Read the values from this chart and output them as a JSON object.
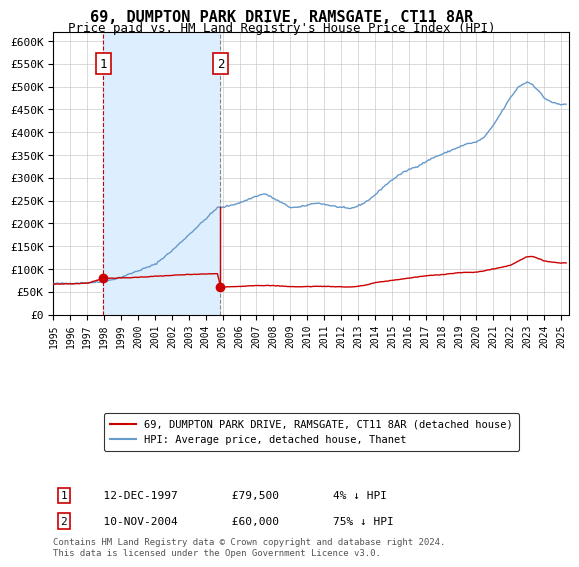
{
  "title": "69, DUMPTON PARK DRIVE, RAMSGATE, CT11 8AR",
  "subtitle": "Price paid vs. HM Land Registry's House Price Index (HPI)",
  "title_fontsize": 11,
  "subtitle_fontsize": 9,
  "purchases": [
    {
      "date_num": 1997.95,
      "price": 79500,
      "label": "1",
      "date_str": "12-DEC-1997",
      "hpi_diff": "4% ↓ HPI"
    },
    {
      "date_num": 2004.87,
      "price": 60000,
      "label": "2",
      "date_str": "10-NOV-2004",
      "hpi_diff": "75% ↓ HPI"
    }
  ],
  "legend_line1": "69, DUMPTON PARK DRIVE, RAMSGATE, CT11 8AR (detached house)",
  "legend_line2": "HPI: Average price, detached house, Thanet",
  "footnote": "Contains HM Land Registry data © Crown copyright and database right 2024.\nThis data is licensed under the Open Government Licence v3.0.",
  "price_line_color": "#cc0000",
  "hpi_line_color": "#6699cc",
  "shading_color": "#ddeeff",
  "dashed_vline_color": "#cc0000",
  "dashed_vline2_color": "#888888",
  "ylim_min": 0,
  "ylim_max": 620000,
  "xlim_min": 1995.0,
  "xlim_max": 2025.5,
  "background_color": "#ffffff",
  "grid_color": "#cccccc",
  "hpi_anchors": [
    [
      1995.0,
      68000
    ],
    [
      1996.0,
      68500
    ],
    [
      1997.0,
      70000
    ],
    [
      1998.0,
      72000
    ],
    [
      1999.0,
      82000
    ],
    [
      2000.0,
      96000
    ],
    [
      2001.0,
      110000
    ],
    [
      2002.0,
      140000
    ],
    [
      2003.0,
      175000
    ],
    [
      2004.0,
      210000
    ],
    [
      2004.7,
      235000
    ],
    [
      2005.0,
      235000
    ],
    [
      2005.5,
      240000
    ],
    [
      2006.0,
      245000
    ],
    [
      2007.0,
      260000
    ],
    [
      2007.5,
      265000
    ],
    [
      2008.0,
      255000
    ],
    [
      2008.5,
      245000
    ],
    [
      2009.0,
      235000
    ],
    [
      2009.5,
      235000
    ],
    [
      2010.0,
      240000
    ],
    [
      2010.5,
      245000
    ],
    [
      2011.0,
      242000
    ],
    [
      2011.5,
      238000
    ],
    [
      2012.0,
      235000
    ],
    [
      2012.5,
      232000
    ],
    [
      2013.0,
      238000
    ],
    [
      2013.5,
      248000
    ],
    [
      2014.0,
      262000
    ],
    [
      2014.5,
      280000
    ],
    [
      2015.0,
      295000
    ],
    [
      2015.5,
      308000
    ],
    [
      2016.0,
      318000
    ],
    [
      2016.5,
      325000
    ],
    [
      2017.0,
      335000
    ],
    [
      2017.5,
      345000
    ],
    [
      2018.0,
      352000
    ],
    [
      2018.5,
      360000
    ],
    [
      2019.0,
      368000
    ],
    [
      2019.5,
      375000
    ],
    [
      2020.0,
      378000
    ],
    [
      2020.5,
      390000
    ],
    [
      2021.0,
      415000
    ],
    [
      2021.5,
      445000
    ],
    [
      2022.0,
      475000
    ],
    [
      2022.5,
      500000
    ],
    [
      2023.0,
      510000
    ],
    [
      2023.3,
      505000
    ],
    [
      2023.7,
      490000
    ],
    [
      2024.0,
      475000
    ],
    [
      2024.5,
      465000
    ],
    [
      2025.0,
      460000
    ],
    [
      2025.3,
      462000
    ]
  ],
  "price_anchors": [
    [
      1995.0,
      67000
    ],
    [
      1996.0,
      67500
    ],
    [
      1997.0,
      69000
    ],
    [
      1997.95,
      79500
    ],
    [
      1998.0,
      79500
    ],
    [
      1998.5,
      80000
    ],
    [
      1999.0,
      80500
    ],
    [
      1999.5,
      81000
    ],
    [
      2000.0,
      82000
    ],
    [
      2001.0,
      84000
    ],
    [
      2002.0,
      86000
    ],
    [
      2003.0,
      88000
    ],
    [
      2004.0,
      89000
    ],
    [
      2004.7,
      90000
    ],
    [
      2004.87,
      60000
    ],
    [
      2005.0,
      60500
    ],
    [
      2005.5,
      61000
    ],
    [
      2006.0,
      62000
    ],
    [
      2007.0,
      64000
    ],
    [
      2008.0,
      63500
    ],
    [
      2008.5,
      62500
    ],
    [
      2009.0,
      61500
    ],
    [
      2009.5,
      61000
    ],
    [
      2010.0,
      61500
    ],
    [
      2010.5,
      62000
    ],
    [
      2011.0,
      62000
    ],
    [
      2011.5,
      61500
    ],
    [
      2012.0,
      61000
    ],
    [
      2012.5,
      60500
    ],
    [
      2013.0,
      62000
    ],
    [
      2013.5,
      65000
    ],
    [
      2014.0,
      70000
    ],
    [
      2015.0,
      75000
    ],
    [
      2016.0,
      80000
    ],
    [
      2017.0,
      85000
    ],
    [
      2018.0,
      88000
    ],
    [
      2019.0,
      92000
    ],
    [
      2020.0,
      93000
    ],
    [
      2021.0,
      100000
    ],
    [
      2022.0,
      108000
    ],
    [
      2022.5,
      118000
    ],
    [
      2023.0,
      127000
    ],
    [
      2023.3,
      128000
    ],
    [
      2023.7,
      122000
    ],
    [
      2024.0,
      118000
    ],
    [
      2024.5,
      115000
    ],
    [
      2025.0,
      113000
    ],
    [
      2025.3,
      114000
    ]
  ]
}
